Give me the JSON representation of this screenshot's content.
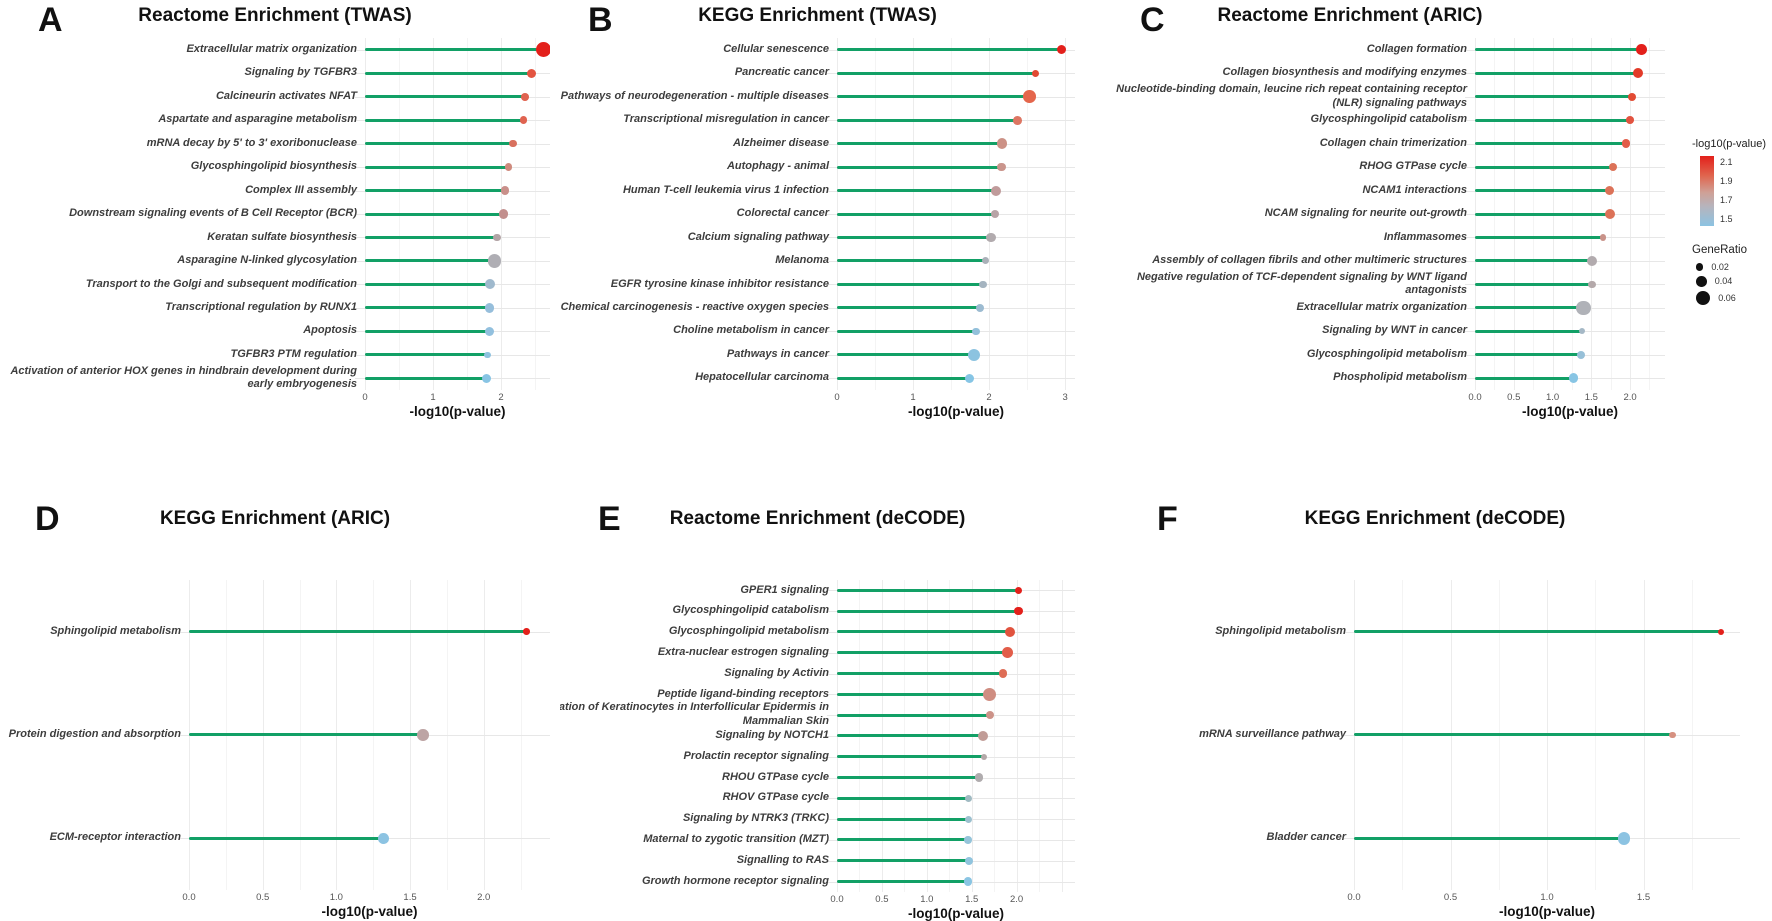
{
  "legend": {
    "color_title": "-log10(p-value)",
    "color_ticks": [
      "2.1",
      "1.9",
      "1.7",
      "1.5"
    ],
    "gradient_top": "#e3201b",
    "gradient_bottom": "#8cc3e2",
    "size_title": "GeneRatio",
    "size_items": [
      {
        "label": "0.02",
        "ratio": 0.02
      },
      {
        "label": "0.04",
        "ratio": 0.04
      },
      {
        "label": "0.06",
        "ratio": 0.06
      }
    ]
  },
  "stem_color": "#12a066",
  "chart_data": [
    {
      "type": "lollipop-bar",
      "letter": "A",
      "title": "Reactome Enrichment (TWAS)",
      "xlabel": "-log10(p-value)",
      "xlim": [
        0,
        2.72
      ],
      "xticks": [
        {
          "v": 0,
          "t": "0"
        },
        {
          "v": 1,
          "t": "1"
        },
        {
          "v": 2,
          "t": "2"
        }
      ],
      "points": [
        {
          "label": "Extracellular matrix organization",
          "value": 2.62,
          "color": "#e3201b",
          "size": 0.065
        },
        {
          "label": "Signaling by TGFBR3",
          "value": 2.45,
          "color": "#e35440",
          "size": 0.03
        },
        {
          "label": "Calcineurin activates NFAT",
          "value": 2.35,
          "color": "#e06350",
          "size": 0.022
        },
        {
          "label": "Aspartate and asparagine metabolism",
          "value": 2.33,
          "color": "#e06350",
          "size": 0.022
        },
        {
          "label": "mRNA decay by 5' to 3' exoribonuclease",
          "value": 2.18,
          "color": "#d8705e",
          "size": 0.022
        },
        {
          "label": "Glycosphingolipid biosynthesis",
          "value": 2.11,
          "color": "#cf8a7d",
          "size": 0.02
        },
        {
          "label": "Complex III assembly",
          "value": 2.06,
          "color": "#c9908a",
          "size": 0.025
        },
        {
          "label": "Downstream signaling events of B Cell Receptor (BCR)",
          "value": 2.03,
          "color": "#c28f8d",
          "size": 0.03
        },
        {
          "label": "Keratan sulfate biosynthesis",
          "value": 1.94,
          "color": "#b3a4a6",
          "size": 0.02
        },
        {
          "label": "Asparagine N-linked glycosylation",
          "value": 1.9,
          "color": "#afaeb4",
          "size": 0.055
        },
        {
          "label": "Transport to the Golgi and subsequent modification",
          "value": 1.84,
          "color": "#9fb9cd",
          "size": 0.035
        },
        {
          "label": "Transcriptional regulation by RUNX1",
          "value": 1.83,
          "color": "#96bedb",
          "size": 0.032
        },
        {
          "label": "Apoptosis",
          "value": 1.83,
          "color": "#92c0de",
          "size": 0.032
        },
        {
          "label": "TGFBR3 PTM regulation",
          "value": 1.8,
          "color": "#8fc2e0",
          "size": 0.015
        },
        {
          "label": "Activation of anterior HOX genes in hindbrain development during\nearly embryogenesis",
          "value": 1.78,
          "color": "#88c4e4",
          "size": 0.03
        }
      ]
    },
    {
      "type": "lollipop-bar",
      "letter": "B",
      "title": "KEGG Enrichment (TWAS)",
      "xlabel": "-log10(p-value)",
      "xlim": [
        0,
        3.13
      ],
      "xticks": [
        {
          "v": 0,
          "t": "0"
        },
        {
          "v": 1,
          "t": "1"
        },
        {
          "v": 2,
          "t": "2"
        },
        {
          "v": 3,
          "t": "3"
        }
      ],
      "points": [
        {
          "label": "Cellular senescence",
          "value": 2.95,
          "color": "#e3201b",
          "size": 0.032
        },
        {
          "label": "Pancreatic cancer",
          "value": 2.61,
          "color": "#e14a33",
          "size": 0.02
        },
        {
          "label": "Pathways of neurodegeneration - multiple diseases",
          "value": 2.53,
          "color": "#e4664c",
          "size": 0.05
        },
        {
          "label": "Transcriptional misregulation in cancer",
          "value": 2.37,
          "color": "#dd7663",
          "size": 0.028
        },
        {
          "label": "Alzheimer disease",
          "value": 2.17,
          "color": "#cc9186",
          "size": 0.04
        },
        {
          "label": "Autophagy - animal",
          "value": 2.16,
          "color": "#ca958c",
          "size": 0.028
        },
        {
          "label": "Human T-cell leukemia virus 1 infection",
          "value": 2.09,
          "color": "#c09b9b",
          "size": 0.035
        },
        {
          "label": "Colorectal cancer",
          "value": 2.08,
          "color": "#b8a3a6",
          "size": 0.025
        },
        {
          "label": "Calcium signaling pathway",
          "value": 2.03,
          "color": "#b2abae",
          "size": 0.035
        },
        {
          "label": "Melanoma",
          "value": 1.95,
          "color": "#aab0b8",
          "size": 0.018
        },
        {
          "label": "EGFR tyrosine kinase inhibitor resistance",
          "value": 1.92,
          "color": "#a5b4c0",
          "size": 0.018
        },
        {
          "label": "Chemical carcinogenesis - reactive oxygen species",
          "value": 1.88,
          "color": "#9cbbd1",
          "size": 0.028
        },
        {
          "label": "Choline metabolism in cancer",
          "value": 1.83,
          "color": "#93c0da",
          "size": 0.02
        },
        {
          "label": "Pathways in cancer",
          "value": 1.8,
          "color": "#8cc3e0",
          "size": 0.05
        },
        {
          "label": "Hepatocellular carcinoma",
          "value": 1.74,
          "color": "#86c5e5",
          "size": 0.032
        }
      ]
    },
    {
      "type": "lollipop-bar",
      "letter": "C",
      "title": "Reactome Enrichment (ARIC)",
      "xlabel": "-log10(p-value)",
      "xlim": [
        0,
        2.45
      ],
      "xticks": [
        {
          "v": 0,
          "t": "0.0"
        },
        {
          "v": 0.5,
          "t": "0.5"
        },
        {
          "v": 1,
          "t": "1.0"
        },
        {
          "v": 1.5,
          "t": "1.5"
        },
        {
          "v": 2,
          "t": "2.0"
        }
      ],
      "points": [
        {
          "label": "Collagen formation",
          "value": 2.15,
          "color": "#e3201b",
          "size": 0.04
        },
        {
          "label": "Collagen biosynthesis and modifying enzymes",
          "value": 2.1,
          "color": "#e23a28",
          "size": 0.035
        },
        {
          "label": "Nucleotide-binding domain, leucine rich repeat containing receptor\n(NLR) signaling pathways",
          "value": 2.02,
          "color": "#e24b33",
          "size": 0.025
        },
        {
          "label": "Glycosphingolipid catabolism",
          "value": 2.0,
          "color": "#e25340",
          "size": 0.022
        },
        {
          "label": "Collagen chain trimerization",
          "value": 1.95,
          "color": "#e25d49",
          "size": 0.025
        },
        {
          "label": "RHOG GTPase cycle",
          "value": 1.78,
          "color": "#dc7258",
          "size": 0.028
        },
        {
          "label": "NCAM1 interactions",
          "value": 1.74,
          "color": "#dc7258",
          "size": 0.03
        },
        {
          "label": "NCAM signaling for neurite out-growth",
          "value": 1.74,
          "color": "#dc7258",
          "size": 0.038
        },
        {
          "label": "Inflammasomes",
          "value": 1.65,
          "color": "#c99289",
          "size": 0.016
        },
        {
          "label": "Assembly of collagen fibrils and other multimeric structures",
          "value": 1.51,
          "color": "#b2abae",
          "size": 0.035
        },
        {
          "label": "Negative regulation of TCF-dependent signaling by WNT ligand\nantagonists",
          "value": 1.51,
          "color": "#b4a9aa",
          "size": 0.02
        },
        {
          "label": "Extracellular matrix organization",
          "value": 1.4,
          "color": "#b0b2b8",
          "size": 0.06
        },
        {
          "label": "Signaling by WNT in cancer",
          "value": 1.38,
          "color": "#a5b8c6",
          "size": 0.013
        },
        {
          "label": "Glycosphingolipid metabolism",
          "value": 1.37,
          "color": "#97c0d8",
          "size": 0.025
        },
        {
          "label": "Phospholipid metabolism",
          "value": 1.27,
          "color": "#88c5e4",
          "size": 0.035
        }
      ]
    },
    {
      "type": "lollipop-bar",
      "letter": "D",
      "title": "KEGG Enrichment (ARIC)",
      "xlabel": "-log10(p-value)",
      "xlim": [
        0,
        2.45
      ],
      "xticks": [
        {
          "v": 0,
          "t": "0.0"
        },
        {
          "v": 0.5,
          "t": "0.5"
        },
        {
          "v": 1,
          "t": "1.0"
        },
        {
          "v": 1.5,
          "t": "1.5"
        },
        {
          "v": 2,
          "t": "2.0"
        }
      ],
      "points": [
        {
          "label": "Sphingolipid metabolism",
          "value": 2.29,
          "color": "#e3201b",
          "size": 0.015
        },
        {
          "label": "Protein digestion and absorption",
          "value": 1.59,
          "color": "#bda4a4",
          "size": 0.045
        },
        {
          "label": "ECM-receptor interaction",
          "value": 1.32,
          "color": "#8cc3e2",
          "size": 0.04
        }
      ]
    },
    {
      "type": "lollipop-bar",
      "letter": "E",
      "title": "Reactome Enrichment (deCODE)",
      "xlabel": "-log10(p-value)",
      "xlim": [
        0,
        2.65
      ],
      "xticks": [
        {
          "v": 0,
          "t": "0.0"
        },
        {
          "v": 0.5,
          "t": "0.5"
        },
        {
          "v": 1,
          "t": "1.0"
        },
        {
          "v": 1.5,
          "t": "1.5"
        },
        {
          "v": 2,
          "t": "2.0"
        }
      ],
      "points": [
        {
          "label": "GPER1 signaling",
          "value": 2.02,
          "color": "#e3201b",
          "size": 0.022
        },
        {
          "label": "Glycosphingolipid catabolism",
          "value": 2.02,
          "color": "#e3201b",
          "size": 0.025
        },
        {
          "label": "Glycosphingolipid metabolism",
          "value": 1.93,
          "color": "#e1533e",
          "size": 0.035
        },
        {
          "label": "Extra-nuclear estrogen signaling",
          "value": 1.9,
          "color": "#e25d49",
          "size": 0.04
        },
        {
          "label": "Signaling by Activin",
          "value": 1.85,
          "color": "#de6d56",
          "size": 0.025
        },
        {
          "label": "Peptide ligand-binding receptors",
          "value": 1.7,
          "color": "#cf8d81",
          "size": 0.055
        },
        {
          "label": "entiation of Keratinocytes in Interfollicular Epidermis in\nMammalian Skin",
          "value": 1.7,
          "color": "#cc9288",
          "size": 0.025
        },
        {
          "label": "Signaling by NOTCH1",
          "value": 1.63,
          "color": "#c19c97",
          "size": 0.035
        },
        {
          "label": "Prolactin receptor signaling",
          "value": 1.64,
          "color": "#b4a8a8",
          "size": 0.014
        },
        {
          "label": "RHOU GTPase cycle",
          "value": 1.58,
          "color": "#b0acae",
          "size": 0.028
        },
        {
          "label": "RHOV GTPase cycle",
          "value": 1.46,
          "color": "#a0bac2",
          "size": 0.018
        },
        {
          "label": "Signaling by NTRK3 (TRKC)",
          "value": 1.46,
          "color": "#9cc0cf",
          "size": 0.018
        },
        {
          "label": "Maternal to zygotic transition (MZT)",
          "value": 1.46,
          "color": "#95c4da",
          "size": 0.02
        },
        {
          "label": "Signalling to RAS",
          "value": 1.47,
          "color": "#90c4de",
          "size": 0.024
        },
        {
          "label": "Growth hormone receptor signaling",
          "value": 1.46,
          "color": "#8ac5e3",
          "size": 0.026
        }
      ]
    },
    {
      "type": "lollipop-bar",
      "letter": "F",
      "title": "KEGG Enrichment (deCODE)",
      "xlabel": "-log10(p-value)",
      "xlim": [
        0,
        2.0
      ],
      "xticks": [
        {
          "v": 0,
          "t": "0.0"
        },
        {
          "v": 0.5,
          "t": "0.5"
        },
        {
          "v": 1,
          "t": "1.0"
        },
        {
          "v": 1.5,
          "t": "1.5"
        }
      ],
      "points": [
        {
          "label": "Sphingolipid metabolism",
          "value": 1.9,
          "color": "#e3201b",
          "size": 0.013
        },
        {
          "label": "mRNA surveillance pathway",
          "value": 1.65,
          "color": "#d69181",
          "size": 0.013
        },
        {
          "label": "Bladder cancer",
          "value": 1.4,
          "color": "#8cc3e2",
          "size": 0.05
        }
      ]
    }
  ]
}
